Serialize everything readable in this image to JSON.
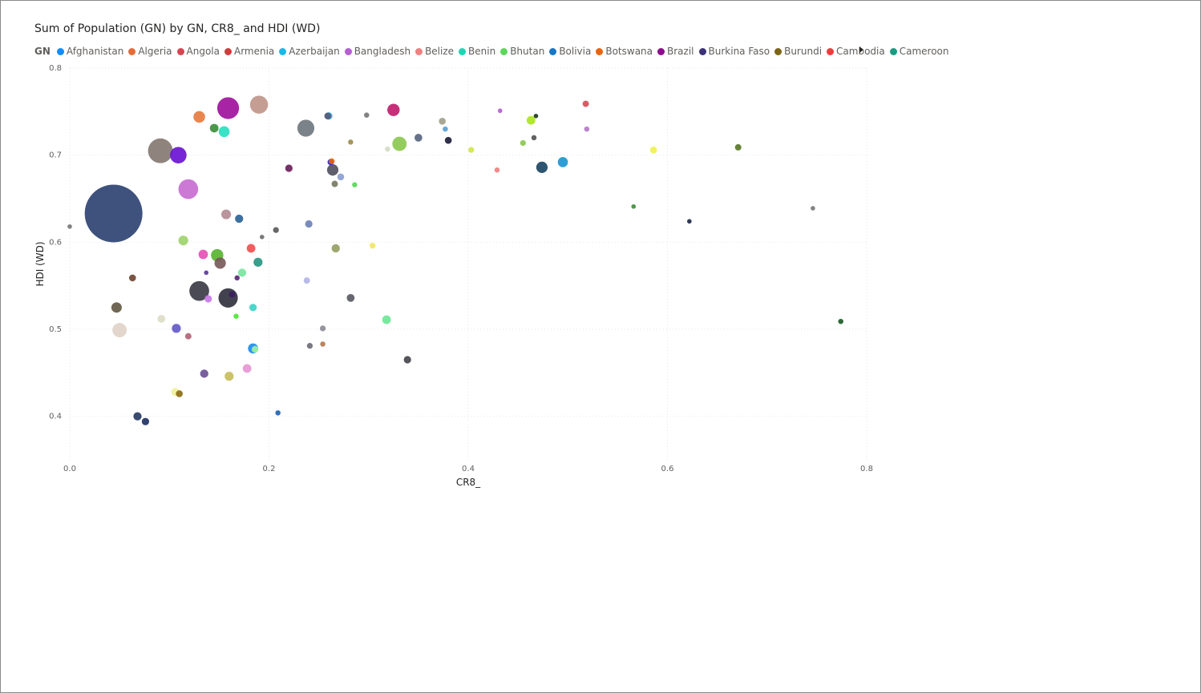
{
  "title": "Sum of Population (GN) by GN, CR8_ and HDI (WD)",
  "legend": {
    "title": "GN",
    "items": [
      {
        "label": "Afghanistan",
        "color": "#118DFF"
      },
      {
        "label": "Algeria",
        "color": "#E66C37"
      },
      {
        "label": "Angola",
        "color": "#D64550"
      },
      {
        "label": "Armenia",
        "color": "#D13C3C"
      },
      {
        "label": "Azerbaijan",
        "color": "#1AB8E8"
      },
      {
        "label": "Bangladesh",
        "color": "#B45FD2"
      },
      {
        "label": "Belize",
        "color": "#F08080"
      },
      {
        "label": "Benin",
        "color": "#1CD6B5"
      },
      {
        "label": "Bhutan",
        "color": "#5CD65C"
      },
      {
        "label": "Bolivia",
        "color": "#1478C8"
      },
      {
        "label": "Botswana",
        "color": "#E8650F"
      },
      {
        "label": "Brazil",
        "color": "#8E0B8E"
      },
      {
        "label": "Burkina Faso",
        "color": "#3C3278"
      },
      {
        "label": "Burundi",
        "color": "#7C6414"
      },
      {
        "label": "Cambodia",
        "color": "#F03C3C"
      },
      {
        "label": "Cameroon",
        "color": "#1B9A83"
      }
    ]
  },
  "chart_data": {
    "type": "scatter",
    "title": "Sum of Population (GN) by GN, CR8_ and HDI (WD)",
    "xlabel": "CR8_",
    "ylabel": "HDI (WD)",
    "xlim": [
      0,
      0.8
    ],
    "ylim": [
      0.35,
      0.8
    ],
    "xticks": [
      "0.0",
      "0.2",
      "0.4",
      "0.6",
      "0.8"
    ],
    "yticks": [
      "0.4",
      "0.5",
      "0.6",
      "0.7",
      "0.8"
    ],
    "xtick_values": [
      0,
      0.2,
      0.4,
      0.6,
      0.8
    ],
    "ytick_values": [
      0.4,
      0.5,
      0.6,
      0.7,
      0.8
    ],
    "grid": true,
    "legend_position": "top-left",
    "points": [
      {
        "x": 0.044,
        "y": 0.633,
        "size": 980,
        "color": "#2E4372"
      },
      {
        "x": 0.091,
        "y": 0.705,
        "size": 180,
        "color": "#857A72"
      },
      {
        "x": 0.159,
        "y": 0.754,
        "size": 140,
        "color": "#A0129C"
      },
      {
        "x": 0.19,
        "y": 0.758,
        "size": 95,
        "color": "#C0968A"
      },
      {
        "x": 0.237,
        "y": 0.731,
        "size": 85,
        "color": "#707880"
      },
      {
        "x": 0.119,
        "y": 0.661,
        "size": 115,
        "color": "#C86ED2"
      },
      {
        "x": 0.109,
        "y": 0.7,
        "size": 80,
        "color": "#6A14D2"
      },
      {
        "x": 0.13,
        "y": 0.744,
        "size": 40,
        "color": "#E67C40"
      },
      {
        "x": 0.155,
        "y": 0.727,
        "size": 35,
        "color": "#2BE0C0"
      },
      {
        "x": 0.145,
        "y": 0.731,
        "size": 22,
        "color": "#3E8E3E"
      },
      {
        "x": 0.325,
        "y": 0.752,
        "size": 45,
        "color": "#C01E6E"
      },
      {
        "x": 0.331,
        "y": 0.713,
        "size": 60,
        "color": "#8CC850"
      },
      {
        "x": 0.26,
        "y": 0.745,
        "size": 16,
        "color": "#1AB8E8"
      },
      {
        "x": 0.259,
        "y": 0.745,
        "size": 14,
        "color": "#5A5A78"
      },
      {
        "x": 0.298,
        "y": 0.746,
        "size": 8,
        "color": "#787878"
      },
      {
        "x": 0.35,
        "y": 0.72,
        "size": 18,
        "color": "#5A6680"
      },
      {
        "x": 0.38,
        "y": 0.717,
        "size": 14,
        "color": "#1E1E3C"
      },
      {
        "x": 0.374,
        "y": 0.739,
        "size": 14,
        "color": "#A0A08C"
      },
      {
        "x": 0.377,
        "y": 0.73,
        "size": 8,
        "color": "#5AA0D2"
      },
      {
        "x": 0.432,
        "y": 0.751,
        "size": 6,
        "color": "#B45FD2"
      },
      {
        "x": 0.463,
        "y": 0.74,
        "size": 22,
        "color": "#AEE61E"
      },
      {
        "x": 0.468,
        "y": 0.745,
        "size": 6,
        "color": "#1E3C1E"
      },
      {
        "x": 0.466,
        "y": 0.72,
        "size": 8,
        "color": "#555555"
      },
      {
        "x": 0.518,
        "y": 0.759,
        "size": 12,
        "color": "#D2505A"
      },
      {
        "x": 0.519,
        "y": 0.73,
        "size": 8,
        "color": "#B478C8"
      },
      {
        "x": 0.455,
        "y": 0.714,
        "size": 10,
        "color": "#8CC850"
      },
      {
        "x": 0.403,
        "y": 0.706,
        "size": 10,
        "color": "#D2E64B"
      },
      {
        "x": 0.282,
        "y": 0.715,
        "size": 8,
        "color": "#A08C50"
      },
      {
        "x": 0.319,
        "y": 0.707,
        "size": 8,
        "color": "#D2DCC8"
      },
      {
        "x": 0.264,
        "y": 0.683,
        "size": 38,
        "color": "#505060"
      },
      {
        "x": 0.262,
        "y": 0.692,
        "size": 12,
        "color": "#2828C8"
      },
      {
        "x": 0.263,
        "y": 0.693,
        "size": 10,
        "color": "#E8650F"
      },
      {
        "x": 0.272,
        "y": 0.675,
        "size": 14,
        "color": "#8CA0D2"
      },
      {
        "x": 0.266,
        "y": 0.667,
        "size": 12,
        "color": "#787864"
      },
      {
        "x": 0.286,
        "y": 0.666,
        "size": 8,
        "color": "#5CD65C"
      },
      {
        "x": 0.22,
        "y": 0.685,
        "size": 16,
        "color": "#6E1E5A"
      },
      {
        "x": 0.474,
        "y": 0.686,
        "size": 38,
        "color": "#1E4664"
      },
      {
        "x": 0.495,
        "y": 0.692,
        "size": 30,
        "color": "#1E96D2"
      },
      {
        "x": 0.429,
        "y": 0.683,
        "size": 8,
        "color": "#F08080"
      },
      {
        "x": 0.586,
        "y": 0.706,
        "size": 14,
        "color": "#F0F050"
      },
      {
        "x": 0.671,
        "y": 0.709,
        "size": 12,
        "color": "#5A7828"
      },
      {
        "x": 0.566,
        "y": 0.641,
        "size": 6,
        "color": "#3E8E3E"
      },
      {
        "x": 0.622,
        "y": 0.624,
        "size": 6,
        "color": "#1E2846"
      },
      {
        "x": 0.746,
        "y": 0.639,
        "size": 6,
        "color": "#787878"
      },
      {
        "x": 0.774,
        "y": 0.509,
        "size": 8,
        "color": "#1E5A28"
      },
      {
        "x": 0.157,
        "y": 0.632,
        "size": 28,
        "color": "#B48C96"
      },
      {
        "x": 0.17,
        "y": 0.627,
        "size": 20,
        "color": "#2C6496"
      },
      {
        "x": 0.207,
        "y": 0.614,
        "size": 10,
        "color": "#5A5A5A"
      },
      {
        "x": 0.193,
        "y": 0.606,
        "size": 6,
        "color": "#6E6E6E"
      },
      {
        "x": 0.24,
        "y": 0.621,
        "size": 16,
        "color": "#6E82B4"
      },
      {
        "x": 0.114,
        "y": 0.602,
        "size": 28,
        "color": "#A0D26E"
      },
      {
        "x": 0.0,
        "y": 0.618,
        "size": 6,
        "color": "#787878"
      },
      {
        "x": 0.134,
        "y": 0.586,
        "size": 26,
        "color": "#E650B4"
      },
      {
        "x": 0.148,
        "y": 0.585,
        "size": 45,
        "color": "#5AB432"
      },
      {
        "x": 0.151,
        "y": 0.576,
        "size": 38,
        "color": "#7A5A5A"
      },
      {
        "x": 0.182,
        "y": 0.593,
        "size": 22,
        "color": "#F05050"
      },
      {
        "x": 0.189,
        "y": 0.577,
        "size": 24,
        "color": "#289682"
      },
      {
        "x": 0.173,
        "y": 0.565,
        "size": 20,
        "color": "#78E6A0"
      },
      {
        "x": 0.267,
        "y": 0.593,
        "size": 20,
        "color": "#96A064"
      },
      {
        "x": 0.304,
        "y": 0.596,
        "size": 10,
        "color": "#F0E664"
      },
      {
        "x": 0.063,
        "y": 0.559,
        "size": 14,
        "color": "#6E4632"
      },
      {
        "x": 0.137,
        "y": 0.565,
        "size": 6,
        "color": "#5A3C96"
      },
      {
        "x": 0.168,
        "y": 0.559,
        "size": 8,
        "color": "#5A2878"
      },
      {
        "x": 0.13,
        "y": 0.544,
        "size": 115,
        "color": "#3C3C46"
      },
      {
        "x": 0.159,
        "y": 0.536,
        "size": 110,
        "color": "#323240"
      },
      {
        "x": 0.163,
        "y": 0.54,
        "size": 12,
        "color": "#3C1E64"
      },
      {
        "x": 0.139,
        "y": 0.535,
        "size": 16,
        "color": "#C878E6"
      },
      {
        "x": 0.238,
        "y": 0.556,
        "size": 12,
        "color": "#B4B4E6"
      },
      {
        "x": 0.282,
        "y": 0.536,
        "size": 18,
        "color": "#5A5A64"
      },
      {
        "x": 0.047,
        "y": 0.525,
        "size": 32,
        "color": "#645A46"
      },
      {
        "x": 0.184,
        "y": 0.525,
        "size": 16,
        "color": "#3CD2C8"
      },
      {
        "x": 0.167,
        "y": 0.515,
        "size": 8,
        "color": "#50E632"
      },
      {
        "x": 0.092,
        "y": 0.512,
        "size": 18,
        "color": "#DCDCC8"
      },
      {
        "x": 0.318,
        "y": 0.511,
        "size": 22,
        "color": "#6EE696"
      },
      {
        "x": 0.05,
        "y": 0.499,
        "size": 60,
        "color": "#E1D2C8"
      },
      {
        "x": 0.107,
        "y": 0.501,
        "size": 24,
        "color": "#645AC8"
      },
      {
        "x": 0.119,
        "y": 0.492,
        "size": 12,
        "color": "#B46478"
      },
      {
        "x": 0.254,
        "y": 0.501,
        "size": 10,
        "color": "#8C8C96"
      },
      {
        "x": 0.184,
        "y": 0.478,
        "size": 30,
        "color": "#1E8CF0"
      },
      {
        "x": 0.186,
        "y": 0.477,
        "size": 14,
        "color": "#A0F0A0"
      },
      {
        "x": 0.241,
        "y": 0.481,
        "size": 10,
        "color": "#6E6E78"
      },
      {
        "x": 0.254,
        "y": 0.483,
        "size": 8,
        "color": "#B47850"
      },
      {
        "x": 0.339,
        "y": 0.465,
        "size": 16,
        "color": "#46464E"
      },
      {
        "x": 0.178,
        "y": 0.455,
        "size": 22,
        "color": "#E696D2"
      },
      {
        "x": 0.135,
        "y": 0.449,
        "size": 20,
        "color": "#6E5096"
      },
      {
        "x": 0.16,
        "y": 0.446,
        "size": 24,
        "color": "#C8BE5A"
      },
      {
        "x": 0.106,
        "y": 0.428,
        "size": 20,
        "color": "#F0F0A0"
      },
      {
        "x": 0.11,
        "y": 0.426,
        "size": 14,
        "color": "#8C6E14"
      },
      {
        "x": 0.209,
        "y": 0.404,
        "size": 8,
        "color": "#1E64B4"
      },
      {
        "x": 0.068,
        "y": 0.4,
        "size": 20,
        "color": "#283C64"
      },
      {
        "x": 0.076,
        "y": 0.394,
        "size": 16,
        "color": "#1E3264"
      }
    ]
  }
}
